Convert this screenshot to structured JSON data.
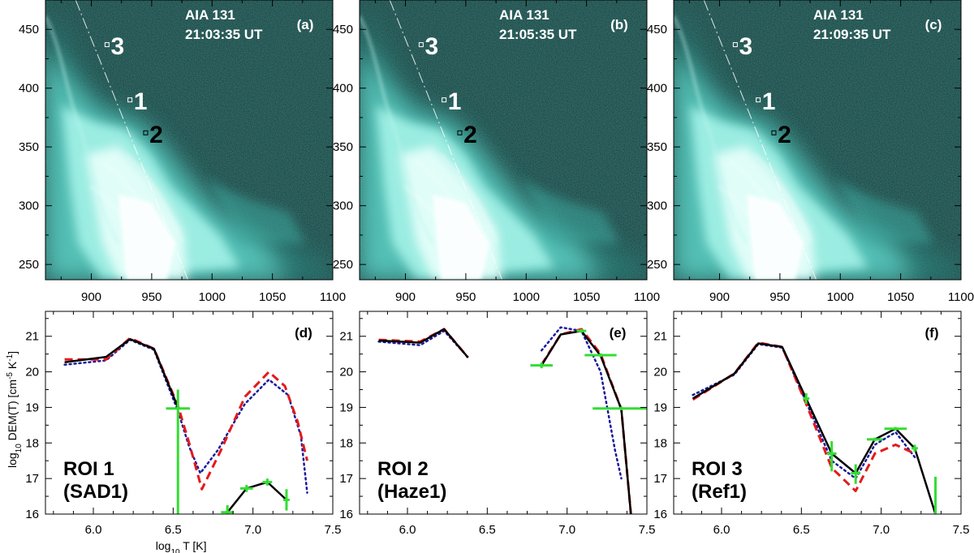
{
  "chart_data": [
    {
      "type": "image",
      "panel": "(a)",
      "instrument": "AIA 131",
      "time": "21:03:35 UT",
      "x_ticks": [
        "900",
        "950",
        "1000",
        "1050",
        "1100"
      ],
      "y_ticks": [
        "450",
        "400",
        "350",
        "300",
        "250"
      ],
      "xlim": [
        862,
        1100
      ],
      "ylim": [
        237,
        475
      ],
      "markers": [
        {
          "label": "3",
          "x": 913,
          "y": 437
        },
        {
          "label": "1",
          "x": 932,
          "y": 390
        },
        {
          "label": "2",
          "x": 945,
          "y": 362
        }
      ]
    },
    {
      "type": "image",
      "panel": "(b)",
      "instrument": "AIA 131",
      "time": "21:05:35 UT",
      "x_ticks": [
        "900",
        "950",
        "1000",
        "1050",
        "1100"
      ],
      "y_ticks": [
        "450",
        "400",
        "350",
        "300",
        "250"
      ],
      "xlim": [
        862,
        1100
      ],
      "ylim": [
        237,
        475
      ],
      "markers": [
        {
          "label": "3",
          "x": 913,
          "y": 437
        },
        {
          "label": "1",
          "x": 932,
          "y": 390
        },
        {
          "label": "2",
          "x": 945,
          "y": 362
        }
      ]
    },
    {
      "type": "image",
      "panel": "(c)",
      "instrument": "AIA 131",
      "time": "21:09:35 UT",
      "x_ticks": [
        "900",
        "950",
        "1000",
        "1050",
        "1100"
      ],
      "y_ticks": [
        "450",
        "400",
        "350",
        "300",
        "250"
      ],
      "xlim": [
        862,
        1100
      ],
      "ylim": [
        237,
        475
      ],
      "markers": [
        {
          "label": "3",
          "x": 913,
          "y": 437
        },
        {
          "label": "1",
          "x": 932,
          "y": 390
        },
        {
          "label": "2",
          "x": 945,
          "y": 362
        }
      ]
    },
    {
      "type": "line",
      "panel": "(d)",
      "roi": "ROI 1",
      "roi_sub": "(SAD1)",
      "xlabel": "log10 T [K]",
      "ylabel": "log10 DEM(T) [cm-5 K-1]",
      "xlim": [
        5.7,
        7.5
      ],
      "ylim": [
        16,
        21.7
      ],
      "x_ticks": [
        "6.0",
        "6.5",
        "7.0",
        "7.5"
      ],
      "y_ticks": [
        "16",
        "17",
        "18",
        "19",
        "20",
        "21"
      ],
      "series": [
        {
          "name": "solid",
          "segments": [
            [
              [
                5.82,
                20.27
              ],
              [
                6.08,
                20.42
              ],
              [
                6.23,
                20.92
              ],
              [
                6.38,
                20.65
              ],
              [
                6.53,
                19.0
              ]
            ],
            [
              [
                6.84,
                16.05
              ],
              [
                6.96,
                16.72
              ],
              [
                7.09,
                16.9
              ],
              [
                7.21,
                16.4
              ]
            ]
          ]
        },
        {
          "name": "red-dashed",
          "segments": [
            [
              [
                5.82,
                20.35
              ],
              [
                6.08,
                20.35
              ],
              [
                6.23,
                20.95
              ],
              [
                6.38,
                20.65
              ],
              [
                6.53,
                19.05
              ],
              [
                6.6,
                18.0
              ],
              [
                6.68,
                16.7
              ],
              [
                6.8,
                17.8
              ],
              [
                6.95,
                19.3
              ],
              [
                7.1,
                20.0
              ],
              [
                7.2,
                19.6
              ],
              [
                7.28,
                18.6
              ],
              [
                7.34,
                17.5
              ]
            ]
          ]
        },
        {
          "name": "blue-dotted",
          "segments": [
            [
              [
                5.82,
                20.2
              ],
              [
                6.08,
                20.32
              ],
              [
                6.23,
                20.9
              ],
              [
                6.38,
                20.62
              ],
              [
                6.53,
                18.9
              ],
              [
                6.6,
                17.9
              ],
              [
                6.67,
                17.15
              ],
              [
                6.78,
                17.8
              ],
              [
                6.95,
                19.1
              ],
              [
                7.1,
                19.78
              ],
              [
                7.22,
                19.35
              ],
              [
                7.3,
                18.2
              ],
              [
                7.34,
                16.6
              ]
            ]
          ]
        }
      ],
      "errorbars": [
        {
          "x": 6.53,
          "y": 18.97,
          "xerr": 0.075,
          "ylo": 16.0,
          "yhi": 19.5
        },
        {
          "x": 6.84,
          "y": 16.05,
          "xerr": 0.04,
          "ylo": 16.0,
          "yhi": 16.25
        },
        {
          "x": 6.96,
          "y": 16.72,
          "xerr": 0.04,
          "ylo": 16.62,
          "yhi": 16.82
        },
        {
          "x": 7.09,
          "y": 16.9,
          "xerr": 0.03,
          "ylo": 16.8,
          "yhi": 17.0
        },
        {
          "x": 7.21,
          "y": 16.4,
          "xerr": 0.02,
          "ylo": 16.1,
          "yhi": 16.7
        }
      ]
    },
    {
      "type": "line",
      "panel": "(e)",
      "roi": "ROI 2",
      "roi_sub": "(Haze1)",
      "xlim": [
        5.7,
        7.5
      ],
      "ylim": [
        16,
        21.7
      ],
      "x_ticks": [
        "6.0",
        "6.5",
        "7.0",
        "7.5"
      ],
      "y_ticks": [
        "16",
        "17",
        "18",
        "19",
        "20",
        "21"
      ],
      "series": [
        {
          "name": "solid",
          "segments": [
            [
              [
                5.82,
                20.88
              ],
              [
                6.08,
                20.82
              ],
              [
                6.23,
                21.2
              ],
              [
                6.38,
                20.4
              ]
            ],
            [
              [
                6.84,
                20.18
              ],
              [
                6.96,
                21.05
              ],
              [
                7.09,
                21.15
              ],
              [
                7.21,
                20.45
              ],
              [
                7.34,
                18.95
              ],
              [
                7.4,
                16.0
              ]
            ]
          ]
        },
        {
          "name": "red-dashed",
          "segments": [
            [
              [
                5.82,
                20.9
              ],
              [
                6.08,
                20.85
              ],
              [
                6.23,
                21.2
              ],
              [
                6.38,
                20.4
              ]
            ],
            [
              [
                6.84,
                20.2
              ],
              [
                6.96,
                21.05
              ],
              [
                7.09,
                21.2
              ],
              [
                7.21,
                20.5
              ],
              [
                7.34,
                18.95
              ],
              [
                7.4,
                16.0
              ]
            ]
          ]
        },
        {
          "name": "blue-dotted",
          "segments": [
            [
              [
                5.82,
                20.85
              ],
              [
                6.08,
                20.75
              ],
              [
                6.23,
                21.15
              ],
              [
                6.38,
                20.4
              ]
            ],
            [
              [
                6.84,
                20.6
              ],
              [
                6.96,
                21.25
              ],
              [
                7.09,
                21.15
              ],
              [
                7.21,
                20.0
              ],
              [
                7.3,
                17.8
              ],
              [
                7.34,
                17.0
              ]
            ]
          ]
        }
      ],
      "errorbars": [
        {
          "x": 6.84,
          "y": 20.18,
          "xerr": 0.07,
          "ylo": 20.1,
          "yhi": 20.26
        },
        {
          "x": 7.09,
          "y": 21.15,
          "xerr": 0.03,
          "ylo": 21.1,
          "yhi": 21.2
        },
        {
          "x": 7.21,
          "y": 20.47,
          "xerr": 0.1,
          "ylo": 20.42,
          "yhi": 20.52
        },
        {
          "x": 7.34,
          "y": 18.97,
          "xerr": 0.18,
          "ylo": 18.92,
          "yhi": 19.02
        }
      ]
    },
    {
      "type": "line",
      "panel": "(f)",
      "roi": "ROI 3",
      "roi_sub": "(Ref1)",
      "xlim": [
        5.7,
        7.5
      ],
      "ylim": [
        16,
        21.7
      ],
      "x_ticks": [
        "6.0",
        "6.5",
        "7.0",
        "7.5"
      ],
      "y_ticks": [
        "16",
        "17",
        "18",
        "19",
        "20",
        "21"
      ],
      "series": [
        {
          "name": "solid",
          "segments": [
            [
              [
                5.82,
                19.25
              ],
              [
                6.08,
                19.95
              ],
              [
                6.23,
                20.8
              ],
              [
                6.38,
                20.7
              ],
              [
                6.53,
                19.25
              ],
              [
                6.69,
                17.7
              ],
              [
                6.84,
                17.15
              ],
              [
                6.96,
                18.1
              ],
              [
                7.09,
                18.4
              ],
              [
                7.21,
                17.85
              ],
              [
                7.34,
                16.0
              ]
            ]
          ]
        },
        {
          "name": "red-dashed",
          "segments": [
            [
              [
                5.82,
                19.22
              ],
              [
                6.08,
                19.95
              ],
              [
                6.23,
                20.82
              ],
              [
                6.38,
                20.7
              ],
              [
                6.53,
                19.1
              ],
              [
                6.69,
                17.3
              ],
              [
                6.84,
                16.65
              ],
              [
                6.96,
                17.7
              ],
              [
                7.09,
                17.95
              ],
              [
                7.21,
                17.7
              ]
            ]
          ]
        },
        {
          "name": "blue-dotted",
          "segments": [
            [
              [
                5.82,
                19.35
              ],
              [
                6.08,
                19.92
              ],
              [
                6.23,
                20.78
              ],
              [
                6.38,
                20.68
              ],
              [
                6.53,
                19.15
              ],
              [
                6.69,
                17.5
              ],
              [
                6.84,
                17.0
              ],
              [
                6.96,
                17.95
              ],
              [
                7.09,
                18.3
              ],
              [
                7.21,
                17.6
              ]
            ]
          ]
        }
      ],
      "errorbars": [
        {
          "x": 6.53,
          "y": 19.25,
          "xerr": 0.02,
          "ylo": 19.1,
          "yhi": 19.4
        },
        {
          "x": 6.69,
          "y": 17.7,
          "xerr": 0.03,
          "ylo": 17.2,
          "yhi": 18.05
        },
        {
          "x": 6.84,
          "y": 17.15,
          "xerr": 0.03,
          "ylo": 16.85,
          "yhi": 17.4
        },
        {
          "x": 6.96,
          "y": 18.1,
          "xerr": 0.05,
          "ylo": 18.05,
          "yhi": 18.15
        },
        {
          "x": 7.09,
          "y": 18.4,
          "xerr": 0.07,
          "ylo": 18.35,
          "yhi": 18.45
        },
        {
          "x": 7.21,
          "y": 17.85,
          "xerr": 0.02,
          "ylo": 17.75,
          "yhi": 17.95
        },
        {
          "x": 7.34,
          "y": 16.0,
          "xerr": 0.0,
          "ylo": 16.0,
          "yhi": 17.05
        }
      ]
    }
  ],
  "colors": {
    "solid": "#000000",
    "red-dashed": "#e41a1c",
    "blue-dotted": "#1a1a9c",
    "errorbar": "#33dd33",
    "image_bg": "#0c3c3a",
    "image_bright": "#d8fffb"
  }
}
